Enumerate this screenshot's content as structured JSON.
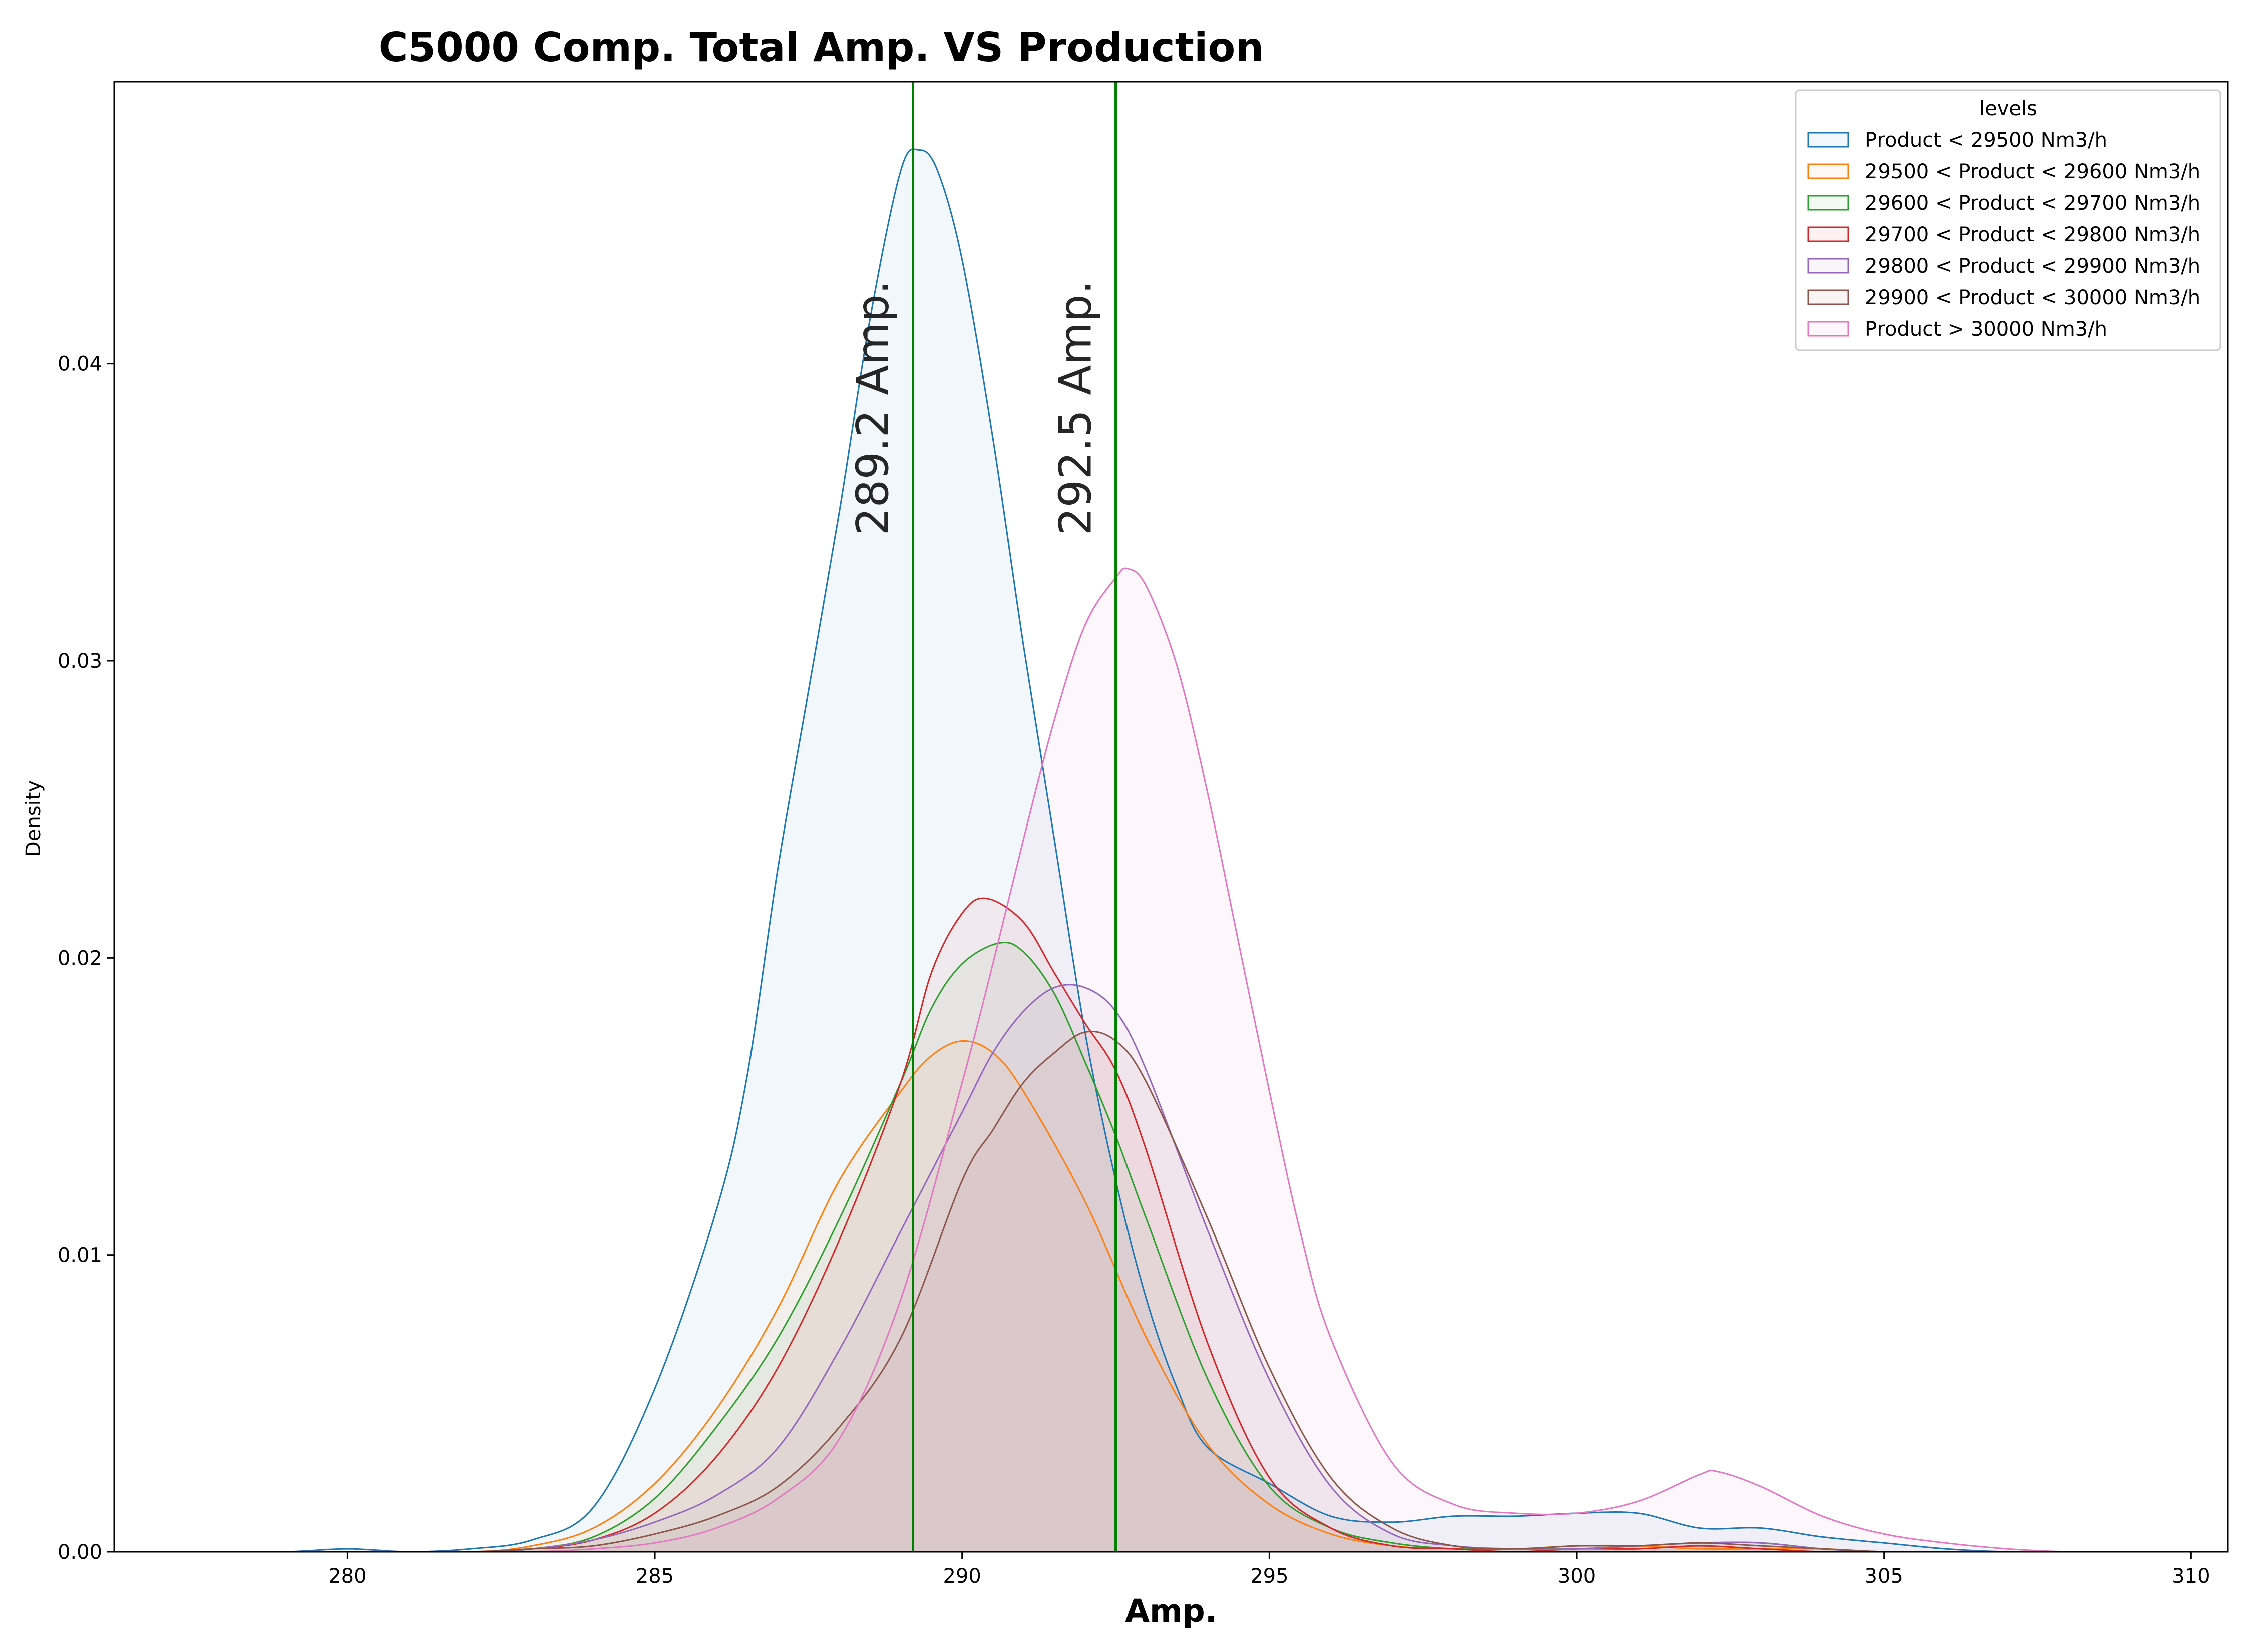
{
  "chart_data": {
    "type": "area",
    "title": "C5000 Comp. Total Amp. VS Production",
    "xlabel": "Amp.",
    "ylabel": "Density",
    "xlim": [
      276.2,
      310.6
    ],
    "ylim": [
      0,
      0.0495
    ],
    "x_ticks": [
      280,
      285,
      290,
      295,
      300,
      305,
      310
    ],
    "x_tick_labels": [
      "280",
      "285",
      "290",
      "295",
      "300",
      "305",
      "310"
    ],
    "y_ticks": [
      0.0,
      0.01,
      0.02,
      0.03,
      0.04
    ],
    "y_tick_labels": [
      "0.00",
      "0.01",
      "0.02",
      "0.03",
      "0.04"
    ],
    "grid": false,
    "legend": {
      "title": "levels",
      "position": "top-right"
    },
    "vlines": [
      {
        "x": 289.2,
        "label": "289.2 Amp.",
        "color": "#008000"
      },
      {
        "x": 292.5,
        "label": "292.5 Amp.",
        "color": "#008000"
      }
    ],
    "series": [
      {
        "name": "Product < 29500 Nm3/h",
        "color": "#1f77b4",
        "points": [
          [
            277.8,
            0
          ],
          [
            279,
            0
          ],
          [
            280,
            0.0001
          ],
          [
            281,
            0
          ],
          [
            282,
            0.0001
          ],
          [
            283,
            0.0004
          ],
          [
            284,
            0.0015
          ],
          [
            285,
            0.0055
          ],
          [
            286,
            0.0115
          ],
          [
            286.5,
            0.016
          ],
          [
            287,
            0.023
          ],
          [
            287.5,
            0.029
          ],
          [
            288,
            0.035
          ],
          [
            288.5,
            0.0415
          ],
          [
            289,
            0.0465
          ],
          [
            289.3,
            0.0472
          ],
          [
            289.6,
            0.0465
          ],
          [
            290,
            0.0435
          ],
          [
            290.5,
            0.0375
          ],
          [
            291,
            0.0305
          ],
          [
            291.5,
            0.024
          ],
          [
            292,
            0.0175
          ],
          [
            292.5,
            0.0125
          ],
          [
            293,
            0.0085
          ],
          [
            293.5,
            0.0055
          ],
          [
            294,
            0.0035
          ],
          [
            295,
            0.0023
          ],
          [
            296,
            0.0012
          ],
          [
            297,
            0.001
          ],
          [
            298,
            0.0012
          ],
          [
            299,
            0.0012
          ],
          [
            300,
            0.0013
          ],
          [
            301,
            0.0013
          ],
          [
            302,
            0.0008
          ],
          [
            303,
            0.0008
          ],
          [
            304,
            0.0005
          ],
          [
            305,
            0.0003
          ],
          [
            306,
            0.0001
          ],
          [
            307,
            0
          ],
          [
            308,
            0
          ]
        ]
      },
      {
        "name": "29500 < Product < 29600 Nm3/h",
        "color": "#ff7f0e",
        "points": [
          [
            280,
            0
          ],
          [
            282,
            0
          ],
          [
            283,
            0.0002
          ],
          [
            284,
            0.0008
          ],
          [
            285,
            0.0023
          ],
          [
            286,
            0.0048
          ],
          [
            287,
            0.0082
          ],
          [
            288,
            0.0125
          ],
          [
            289,
            0.0155
          ],
          [
            289.5,
            0.0167
          ],
          [
            290,
            0.0172
          ],
          [
            290.5,
            0.0168
          ],
          [
            291,
            0.0155
          ],
          [
            292,
            0.0118
          ],
          [
            293,
            0.0072
          ],
          [
            294,
            0.0036
          ],
          [
            295,
            0.0016
          ],
          [
            296,
            0.0006
          ],
          [
            297,
            0.0002
          ],
          [
            298,
            0.0001
          ],
          [
            299,
            0.0001
          ],
          [
            300,
            0.0002
          ],
          [
            301,
            0.0002
          ],
          [
            302,
            0.0001
          ],
          [
            303,
            0.0001
          ],
          [
            304,
            0.0001
          ],
          [
            305,
            0
          ],
          [
            306,
            0
          ],
          [
            307,
            0
          ]
        ]
      },
      {
        "name": "29600 < Product < 29700 Nm3/h",
        "color": "#2ca02c",
        "points": [
          [
            280,
            0
          ],
          [
            282,
            0
          ],
          [
            283,
            0.0001
          ],
          [
            284,
            0.0005
          ],
          [
            285,
            0.0018
          ],
          [
            286,
            0.0042
          ],
          [
            287,
            0.0072
          ],
          [
            288,
            0.0112
          ],
          [
            289,
            0.0158
          ],
          [
            289.5,
            0.0183
          ],
          [
            290,
            0.0198
          ],
          [
            290.6,
            0.0205
          ],
          [
            291,
            0.0202
          ],
          [
            291.5,
            0.0188
          ],
          [
            292,
            0.0165
          ],
          [
            292.5,
            0.014
          ],
          [
            293,
            0.0112
          ],
          [
            294,
            0.0058
          ],
          [
            295,
            0.0022
          ],
          [
            296,
            0.0008
          ],
          [
            297,
            0.0003
          ],
          [
            298,
            0.0001
          ],
          [
            299,
            0.0001
          ],
          [
            300,
            0.0001
          ],
          [
            301,
            0.0002
          ],
          [
            302,
            0.0003
          ],
          [
            303,
            0.0003
          ],
          [
            304,
            0.0001
          ],
          [
            305,
            0
          ],
          [
            306,
            0
          ]
        ]
      },
      {
        "name": "29700 < Product < 29800 Nm3/h",
        "color": "#d62728",
        "points": [
          [
            280,
            0
          ],
          [
            282,
            0
          ],
          [
            283,
            0.0001
          ],
          [
            284,
            0.0004
          ],
          [
            285,
            0.0013
          ],
          [
            286,
            0.0032
          ],
          [
            287,
            0.0062
          ],
          [
            288,
            0.0105
          ],
          [
            289,
            0.0158
          ],
          [
            289.5,
            0.0195
          ],
          [
            290,
            0.0215
          ],
          [
            290.4,
            0.022
          ],
          [
            291,
            0.0212
          ],
          [
            291.5,
            0.0195
          ],
          [
            292,
            0.0178
          ],
          [
            292.5,
            0.0162
          ],
          [
            293,
            0.0135
          ],
          [
            294,
            0.007
          ],
          [
            295,
            0.0025
          ],
          [
            296,
            0.0008
          ],
          [
            297,
            0.0002
          ],
          [
            298,
            0.0001
          ],
          [
            299,
            0
          ],
          [
            300,
            0.0001
          ],
          [
            301,
            0.0001
          ],
          [
            302,
            0.0002
          ],
          [
            303,
            0.0001
          ],
          [
            304,
            0
          ],
          [
            305,
            0
          ],
          [
            306,
            0
          ]
        ]
      },
      {
        "name": "29800 < Product < 29900 Nm3/h",
        "color": "#9467bd",
        "points": [
          [
            280,
            0
          ],
          [
            282,
            0
          ],
          [
            283,
            0.0001
          ],
          [
            284,
            0.0004
          ],
          [
            285,
            0.001
          ],
          [
            286,
            0.0019
          ],
          [
            287,
            0.0035
          ],
          [
            288,
            0.0068
          ],
          [
            289,
            0.0108
          ],
          [
            290,
            0.0148
          ],
          [
            290.5,
            0.0168
          ],
          [
            291,
            0.0182
          ],
          [
            291.5,
            0.019
          ],
          [
            292,
            0.019
          ],
          [
            292.5,
            0.0182
          ],
          [
            293,
            0.0162
          ],
          [
            294,
            0.0108
          ],
          [
            295,
            0.0058
          ],
          [
            296,
            0.0022
          ],
          [
            297,
            0.0006
          ],
          [
            298,
            0.0002
          ],
          [
            299,
            0.0001
          ],
          [
            300,
            0.0001
          ],
          [
            301,
            0.0002
          ],
          [
            302,
            0.0003
          ],
          [
            303,
            0.0003
          ],
          [
            304,
            0.0001
          ],
          [
            305,
            0
          ],
          [
            306,
            0
          ]
        ]
      },
      {
        "name": "29900 < Product < 30000 Nm3/h",
        "color": "#8c564b",
        "points": [
          [
            280,
            0
          ],
          [
            282,
            0
          ],
          [
            283,
            0.0001
          ],
          [
            284,
            0.0002
          ],
          [
            285,
            0.0006
          ],
          [
            286,
            0.0012
          ],
          [
            287,
            0.0022
          ],
          [
            288,
            0.0042
          ],
          [
            289,
            0.0072
          ],
          [
            290,
            0.0125
          ],
          [
            290.5,
            0.0142
          ],
          [
            291,
            0.0158
          ],
          [
            291.5,
            0.0168
          ],
          [
            292,
            0.0175
          ],
          [
            292.5,
            0.0172
          ],
          [
            293,
            0.0158
          ],
          [
            294,
            0.0112
          ],
          [
            295,
            0.0062
          ],
          [
            296,
            0.0025
          ],
          [
            297,
            0.0008
          ],
          [
            298,
            0.0002
          ],
          [
            299,
            0.0001
          ],
          [
            300,
            0.0002
          ],
          [
            301,
            0.0002
          ],
          [
            302,
            0.0003
          ],
          [
            303,
            0.0002
          ],
          [
            304,
            0.0001
          ],
          [
            305,
            0
          ],
          [
            306,
            0
          ]
        ]
      },
      {
        "name": "Product > 30000 Nm3/h",
        "color": "#e377c2",
        "points": [
          [
            280,
            0
          ],
          [
            282,
            0
          ],
          [
            283,
            0
          ],
          [
            284,
            0.0001
          ],
          [
            285,
            0.0003
          ],
          [
            286,
            0.0008
          ],
          [
            287,
            0.0018
          ],
          [
            288,
            0.0038
          ],
          [
            289,
            0.0085
          ],
          [
            290,
            0.0158
          ],
          [
            290.5,
            0.0198
          ],
          [
            291,
            0.024
          ],
          [
            291.5,
            0.028
          ],
          [
            292,
            0.0312
          ],
          [
            292.5,
            0.0328
          ],
          [
            292.7,
            0.0331
          ],
          [
            293,
            0.0325
          ],
          [
            293.5,
            0.0298
          ],
          [
            294,
            0.0255
          ],
          [
            294.5,
            0.0205
          ],
          [
            295,
            0.0155
          ],
          [
            295.5,
            0.0108
          ],
          [
            296,
            0.0072
          ],
          [
            297,
            0.003
          ],
          [
            298,
            0.0016
          ],
          [
            299,
            0.0013
          ],
          [
            300,
            0.0013
          ],
          [
            301,
            0.0017
          ],
          [
            302,
            0.0026
          ],
          [
            302.3,
            0.0027
          ],
          [
            303,
            0.0022
          ],
          [
            304,
            0.0012
          ],
          [
            305,
            0.0006
          ],
          [
            306,
            0.0003
          ],
          [
            307,
            0.0001
          ],
          [
            308,
            0
          ],
          [
            309,
            0
          ]
        ]
      }
    ]
  }
}
